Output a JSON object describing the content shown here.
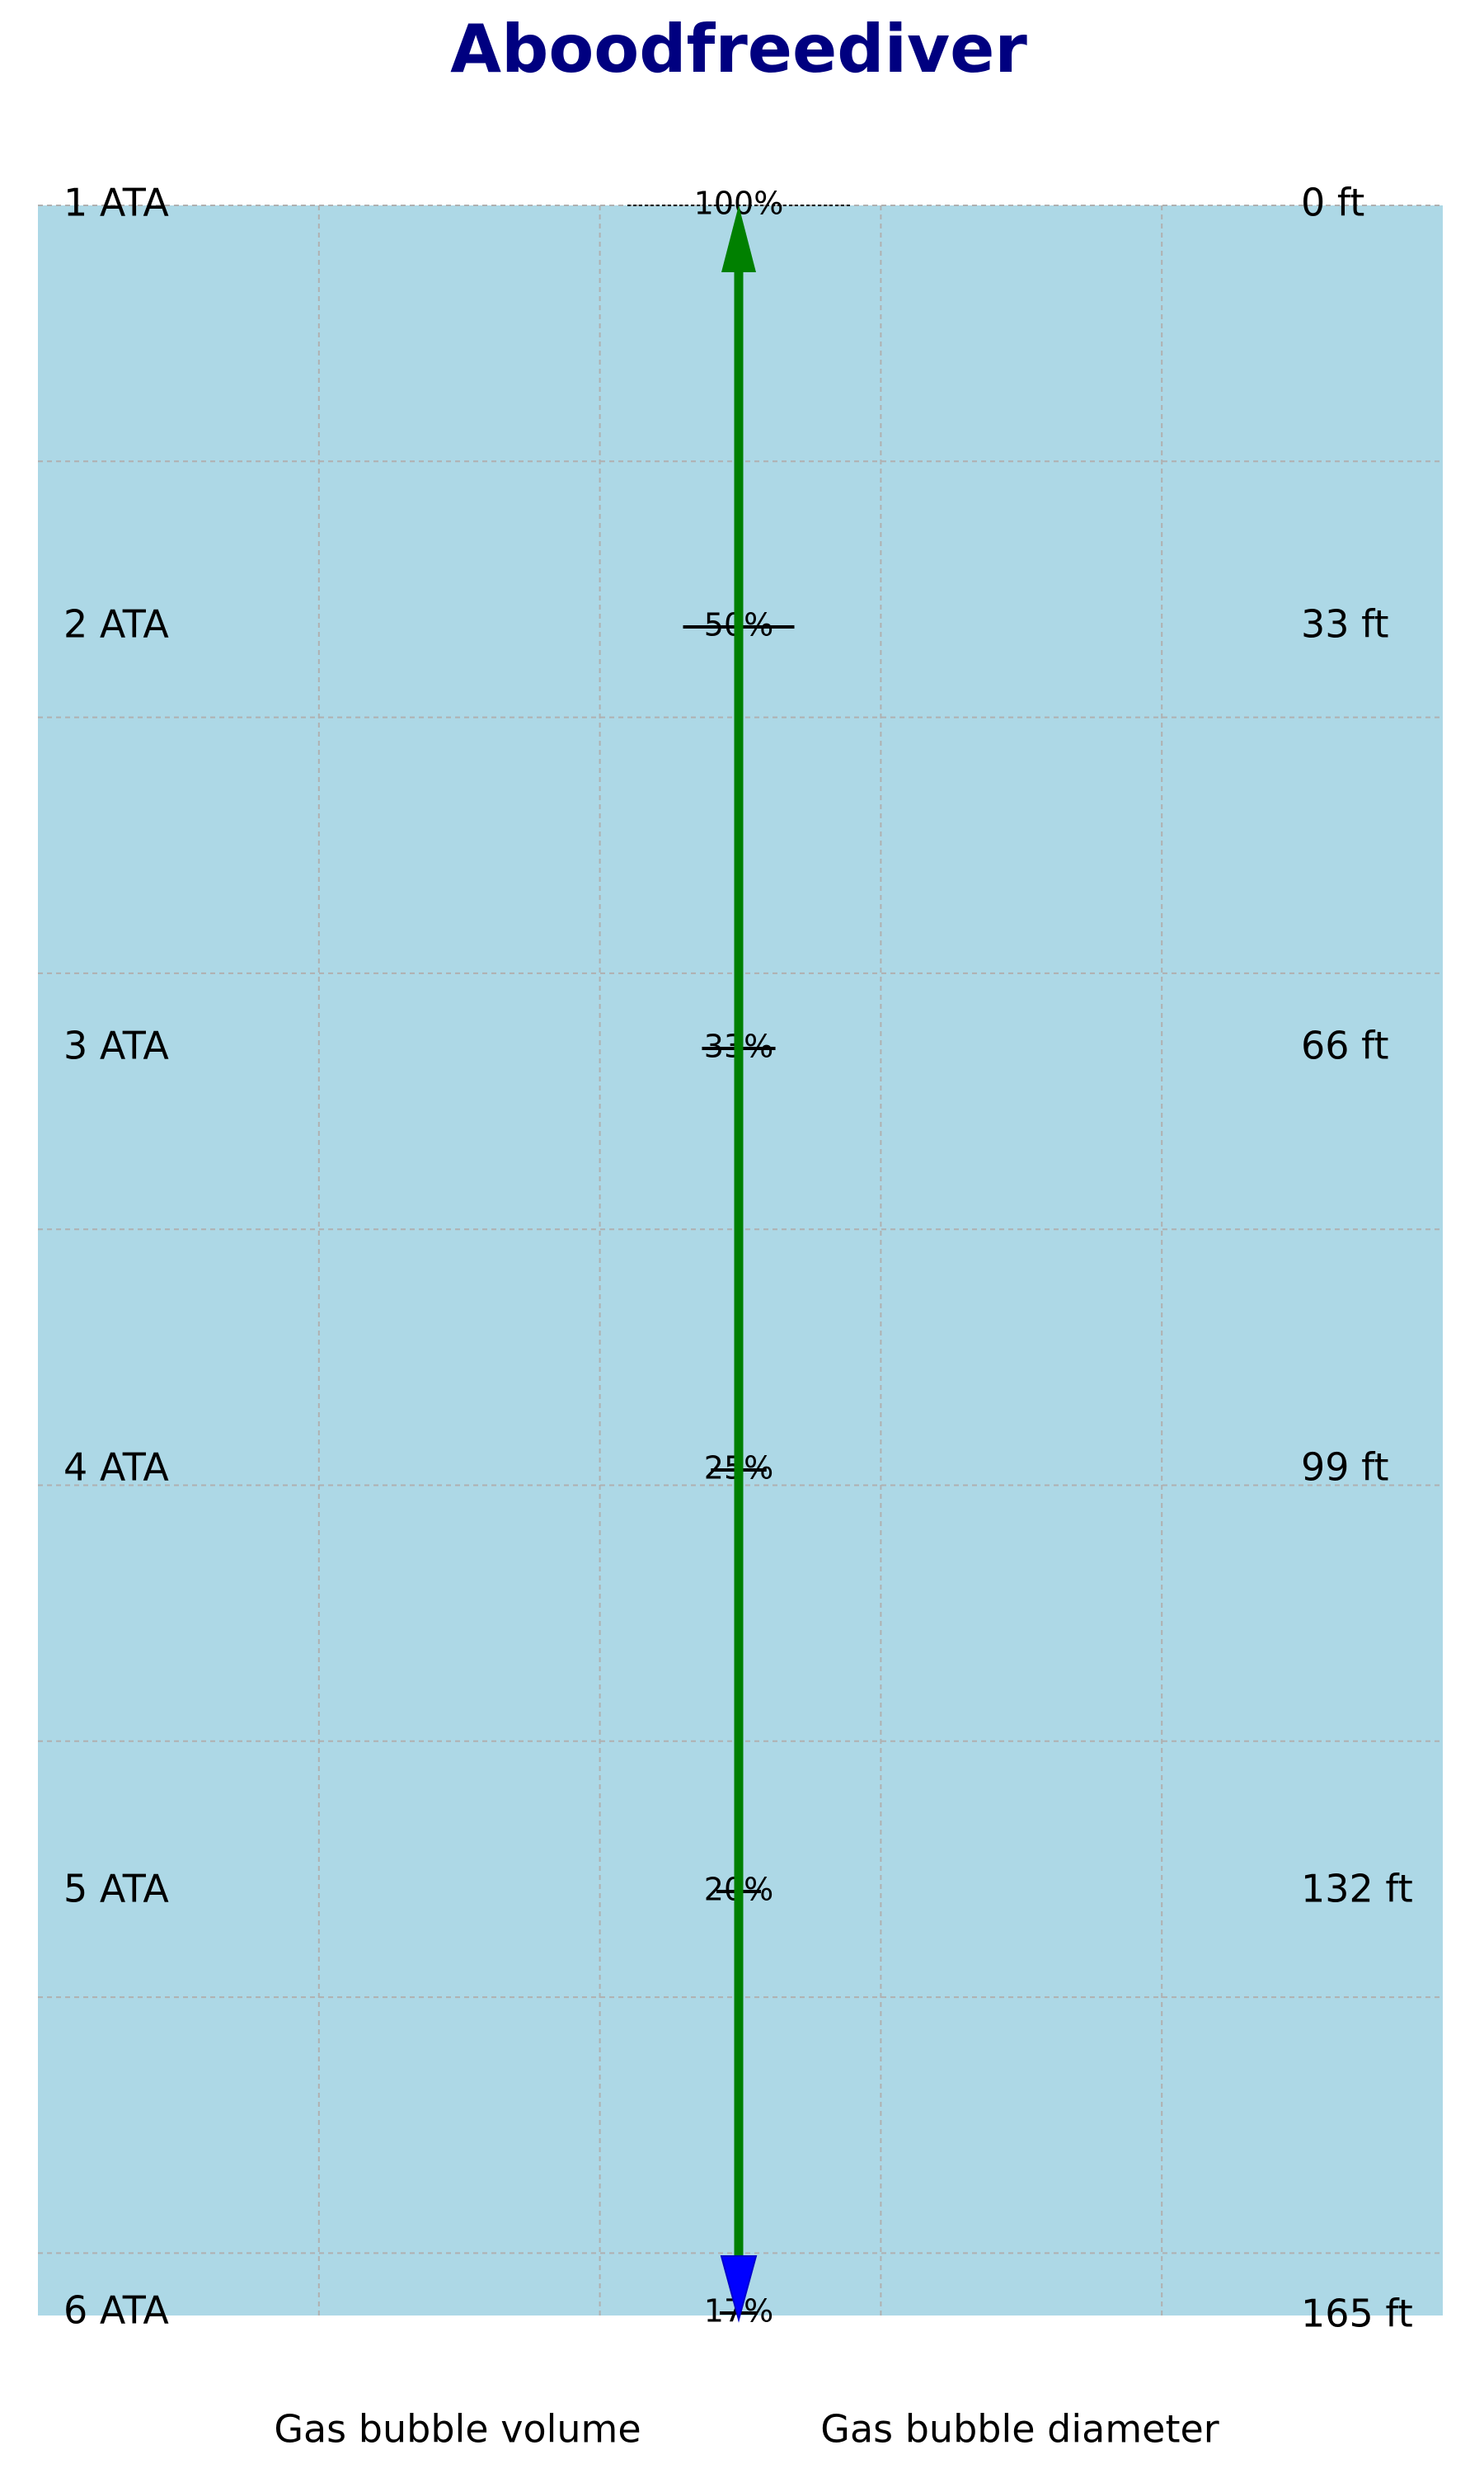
{
  "title": "Aboodfreediver",
  "levels": [
    {
      "pressure": "1 ATA",
      "volume": 100,
      "volume_label": "100%",
      "depth": "0 ft"
    },
    {
      "pressure": "2 ATA",
      "volume": 50,
      "volume_label": "50%",
      "depth": "33 ft"
    },
    {
      "pressure": "3 ATA",
      "volume": 33,
      "volume_label": "33%",
      "depth": "66 ft"
    },
    {
      "pressure": "4 ATA",
      "volume": 25,
      "volume_label": "25%",
      "depth": "99 ft"
    },
    {
      "pressure": "5 ATA",
      "volume": 20,
      "volume_label": "20%",
      "depth": "132 ft"
    },
    {
      "pressure": "6 ATA",
      "volume": 17,
      "volume_label": "17%",
      "depth": "165 ft"
    }
  ],
  "footer": {
    "left": "Gas bubble volume",
    "right": "Gas bubble diameter"
  }
}
